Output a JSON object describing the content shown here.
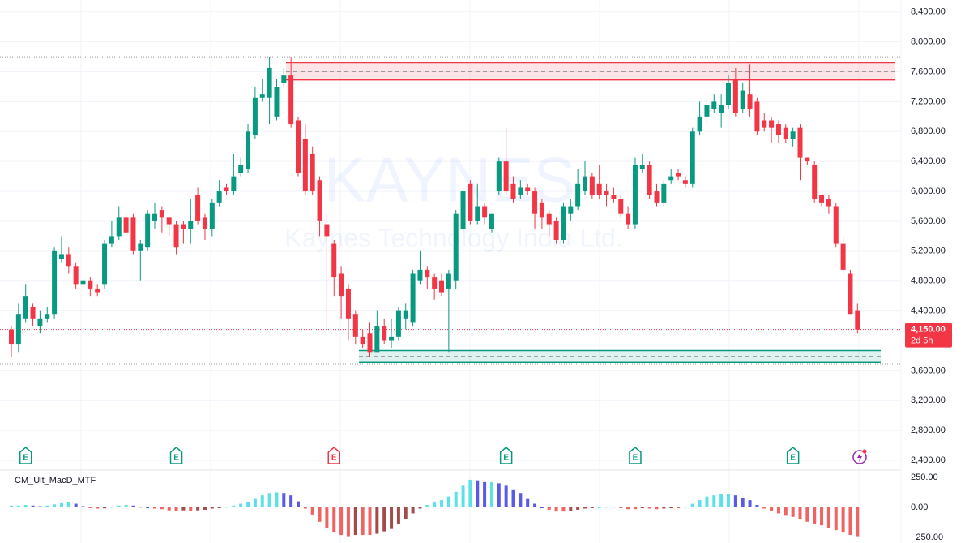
{
  "chart_data": [
    {
      "type": "candlestick",
      "watermark": "KAYNES",
      "watermark_subtitle": "Kaynes Technology India Ltd.",
      "up_color": "#089981",
      "down_color": "#f23645",
      "ylim": [
        2270,
        8560
      ],
      "yticks": [
        {
          "value": 8400,
          "label": "8,400.00"
        },
        {
          "value": 8000,
          "label": "8,000.00"
        },
        {
          "value": 7600,
          "label": "7,600.00"
        },
        {
          "value": 7200,
          "label": "7,200.00"
        },
        {
          "value": 6800,
          "label": "6,800.00"
        },
        {
          "value": 6400,
          "label": "6,400.00"
        },
        {
          "value": 6000,
          "label": "6,000.00"
        },
        {
          "value": 5600,
          "label": "5,600.00"
        },
        {
          "value": 5200,
          "label": "5,200.00"
        },
        {
          "value": 4800,
          "label": "4,800.00"
        },
        {
          "value": 4400,
          "label": "4,400.00"
        },
        {
          "value": 3600,
          "label": "3,600.00"
        },
        {
          "value": 3200,
          "label": "3,200.00"
        },
        {
          "value": 2800,
          "label": "2,800.00"
        },
        {
          "value": 2400,
          "label": "2,400.00"
        }
      ],
      "grid": true,
      "last_price": {
        "value": 4150,
        "label": "4,150.00",
        "countdown": "2d 5h",
        "color": "#f23645"
      },
      "dotted_levels": [
        7800,
        3690
      ],
      "zones": [
        {
          "top": 7720,
          "bottom": 7490,
          "color": "#f23645"
        },
        {
          "top": 3870,
          "bottom": 3710,
          "color": "#089981"
        }
      ],
      "earnings": [
        {
          "label": "E",
          "index": 2,
          "color": "#089981"
        },
        {
          "label": "E",
          "index": 23,
          "color": "#089981"
        },
        {
          "label": "E",
          "index": 45,
          "color": "#f23645"
        },
        {
          "label": "E",
          "index": 69,
          "color": "#089981"
        },
        {
          "label": "E",
          "index": 87,
          "color": "#089981"
        },
        {
          "label": "E",
          "index": 109,
          "color": "#089981"
        }
      ],
      "ohlc": [
        [
          4150,
          4200,
          3780,
          3950
        ],
        [
          3950,
          4500,
          3850,
          4350
        ],
        [
          4300,
          4750,
          4250,
          4600
        ],
        [
          4450,
          4500,
          4200,
          4300
        ],
        [
          4200,
          4400,
          4100,
          4300
        ],
        [
          4300,
          4450,
          4250,
          4350
        ],
        [
          4350,
          5250,
          4300,
          5200
        ],
        [
          5100,
          5400,
          5050,
          5150
        ],
        [
          5150,
          5250,
          4900,
          5000
        ],
        [
          5000,
          5050,
          4700,
          4750
        ],
        [
          4750,
          4950,
          4600,
          4800
        ],
        [
          4800,
          4850,
          4600,
          4700
        ],
        [
          4700,
          4750,
          4600,
          4650
        ],
        [
          4750,
          5350,
          4700,
          5300
        ],
        [
          5300,
          5600,
          5250,
          5400
        ],
        [
          5400,
          5800,
          5350,
          5650
        ],
        [
          5650,
          5700,
          5400,
          5450
        ],
        [
          5650,
          5700,
          5150,
          5200
        ],
        [
          5200,
          5350,
          4800,
          5300
        ],
        [
          5250,
          5750,
          5200,
          5700
        ],
        [
          5600,
          5850,
          5500,
          5700
        ],
        [
          5750,
          5800,
          5450,
          5650
        ],
        [
          5650,
          5650,
          5400,
          5550
        ],
        [
          5550,
          5600,
          5150,
          5250
        ],
        [
          5550,
          5600,
          5300,
          5500
        ],
        [
          5500,
          5900,
          5300,
          5600
        ],
        [
          5950,
          6050,
          5550,
          5600
        ],
        [
          5650,
          5700,
          5350,
          5500
        ],
        [
          5500,
          5900,
          5400,
          5850
        ],
        [
          5850,
          6150,
          5800,
          6000
        ],
        [
          6050,
          6100,
          5950,
          6000
        ],
        [
          6000,
          6500,
          5950,
          6200
        ],
        [
          6250,
          6450,
          6200,
          6350
        ],
        [
          6300,
          6900,
          6250,
          6800
        ],
        [
          6750,
          7400,
          6700,
          7250
        ],
        [
          7250,
          7500,
          7200,
          7300
        ],
        [
          7250,
          7800,
          6900,
          7650
        ],
        [
          7000,
          7500,
          6950,
          7400
        ],
        [
          7450,
          7650,
          7400,
          7550
        ],
        [
          7550,
          7800,
          6850,
          6900
        ],
        [
          6950,
          7000,
          6200,
          6250
        ],
        [
          6700,
          6900,
          5950,
          6000
        ],
        [
          6500,
          6600,
          5950,
          6000
        ],
        [
          6150,
          6200,
          5400,
          5600
        ],
        [
          5550,
          5700,
          4200,
          5400
        ],
        [
          5300,
          5350,
          4600,
          4850
        ],
        [
          4900,
          5000,
          4300,
          4600
        ],
        [
          4700,
          4750,
          4000,
          4300
        ],
        [
          4350,
          4400,
          3950,
          4050
        ],
        [
          4050,
          4150,
          3900,
          3950
        ],
        [
          4100,
          4250,
          3780,
          3850
        ],
        [
          3850,
          4400,
          3850,
          4200
        ],
        [
          4200,
          4300,
          3950,
          4000
        ],
        [
          4000,
          4300,
          3900,
          4050
        ],
        [
          4050,
          4450,
          4000,
          4400
        ],
        [
          4300,
          4500,
          4150,
          4400
        ],
        [
          4250,
          4950,
          4200,
          4900
        ],
        [
          4800,
          5200,
          4750,
          4950
        ],
        [
          4950,
          5000,
          4700,
          4850
        ],
        [
          4850,
          4900,
          4550,
          4700
        ],
        [
          4800,
          4900,
          4600,
          4650
        ],
        [
          4700,
          4950,
          3850,
          4900
        ],
        [
          4800,
          5750,
          4700,
          5700
        ],
        [
          5500,
          6050,
          5450,
          6000
        ],
        [
          6100,
          6150,
          5550,
          5600
        ],
        [
          5600,
          6100,
          5550,
          5800
        ],
        [
          5800,
          5850,
          5550,
          5650
        ],
        [
          5500,
          5700,
          5450,
          5700
        ],
        [
          6000,
          6450,
          5950,
          6400
        ],
        [
          6400,
          6850,
          5950,
          6000
        ],
        [
          6100,
          6200,
          5850,
          5900
        ],
        [
          5950,
          6150,
          5900,
          6050
        ],
        [
          6050,
          6100,
          5950,
          6000
        ],
        [
          6000,
          6050,
          5500,
          5700
        ],
        [
          5850,
          5900,
          5500,
          5650
        ],
        [
          5700,
          5750,
          5400,
          5550
        ],
        [
          5600,
          5650,
          5300,
          5350
        ],
        [
          5350,
          5850,
          5300,
          5800
        ],
        [
          5700,
          5900,
          5600,
          5800
        ],
        [
          5800,
          6300,
          5750,
          6100
        ],
        [
          6000,
          6400,
          5950,
          6200
        ],
        [
          6200,
          6250,
          5900,
          5950
        ],
        [
          6100,
          6350,
          5900,
          5950
        ],
        [
          6000,
          6100,
          5800,
          5950
        ],
        [
          5950,
          6050,
          5850,
          5900
        ],
        [
          5900,
          5950,
          5650,
          5700
        ],
        [
          5700,
          5800,
          5500,
          5550
        ],
        [
          5550,
          6450,
          5500,
          6350
        ],
        [
          6300,
          6500,
          6250,
          6350
        ],
        [
          6350,
          6400,
          5900,
          5950
        ],
        [
          6000,
          6100,
          5800,
          5850
        ],
        [
          5850,
          6150,
          5800,
          6100
        ],
        [
          6150,
          6300,
          6100,
          6200
        ],
        [
          6250,
          6300,
          6150,
          6200
        ],
        [
          6150,
          6200,
          6050,
          6100
        ],
        [
          6100,
          6850,
          6050,
          6800
        ],
        [
          6800,
          7200,
          6750,
          7000
        ],
        [
          7000,
          7250,
          6900,
          7150
        ],
        [
          7100,
          7300,
          7050,
          7200
        ],
        [
          7050,
          7300,
          6850,
          7150
        ],
        [
          7150,
          7550,
          7100,
          7450
        ],
        [
          7500,
          7650,
          7000,
          7050
        ],
        [
          7100,
          7450,
          7050,
          7350
        ],
        [
          7300,
          7700,
          7000,
          7100
        ],
        [
          7200,
          7250,
          6750,
          6800
        ],
        [
          6950,
          7050,
          6800,
          6850
        ],
        [
          6950,
          7000,
          6650,
          6850
        ],
        [
          6900,
          6950,
          6650,
          6750
        ],
        [
          6850,
          6900,
          6650,
          6700
        ],
        [
          6700,
          6850,
          6600,
          6800
        ],
        [
          6850,
          6900,
          6150,
          6450
        ],
        [
          6450,
          6450,
          6350,
          6400
        ],
        [
          6350,
          6400,
          5850,
          5900
        ],
        [
          5950,
          5950,
          5800,
          5850
        ],
        [
          5900,
          5950,
          5700,
          5800
        ],
        [
          5800,
          5850,
          5250,
          5300
        ],
        [
          5300,
          5400,
          4900,
          4950
        ],
        [
          4900,
          4950,
          4350,
          4350
        ],
        [
          4400,
          4500,
          4100,
          4150
        ]
      ]
    },
    {
      "type": "bar",
      "title": "CM_Ult_MacD_MTF",
      "ylim": [
        -297,
        297
      ],
      "yticks": [
        {
          "value": 250,
          "label": "250.00"
        },
        {
          "value": 0,
          "label": "0.00"
        },
        {
          "value": -250,
          "label": "−250.00"
        }
      ],
      "hist_colors": {
        "above_rising": "#5ce1e6",
        "above_falling": "#5a5ae6",
        "below_falling": "#ef6363",
        "below_rising": "#a24b4b"
      },
      "values": [
        15,
        15,
        20,
        15,
        10,
        15,
        25,
        35,
        40,
        30,
        10,
        -5,
        -10,
        -8,
        5,
        15,
        20,
        15,
        5,
        0,
        -10,
        -15,
        -25,
        -30,
        -25,
        -30,
        -25,
        -20,
        -10,
        -5,
        5,
        15,
        30,
        45,
        70,
        100,
        120,
        125,
        120,
        100,
        50,
        -10,
        -60,
        -120,
        -170,
        -210,
        -230,
        -240,
        -230,
        -230,
        -230,
        -220,
        -200,
        -180,
        -140,
        -100,
        -50,
        -10,
        20,
        40,
        60,
        90,
        130,
        180,
        230,
        225,
        210,
        210,
        200,
        180,
        150,
        120,
        70,
        30,
        0,
        -20,
        -35,
        -35,
        -30,
        -20,
        -10,
        -5,
        0,
        5,
        5,
        -5,
        -15,
        -15,
        -5,
        -10,
        -15,
        -10,
        -5,
        -5,
        5,
        30,
        60,
        90,
        100,
        110,
        110,
        100,
        80,
        60,
        20,
        -10,
        -30,
        -50,
        -70,
        -80,
        -100,
        -120,
        -140,
        -150,
        -170,
        -190,
        -210,
        -230,
        -240
      ]
    }
  ]
}
